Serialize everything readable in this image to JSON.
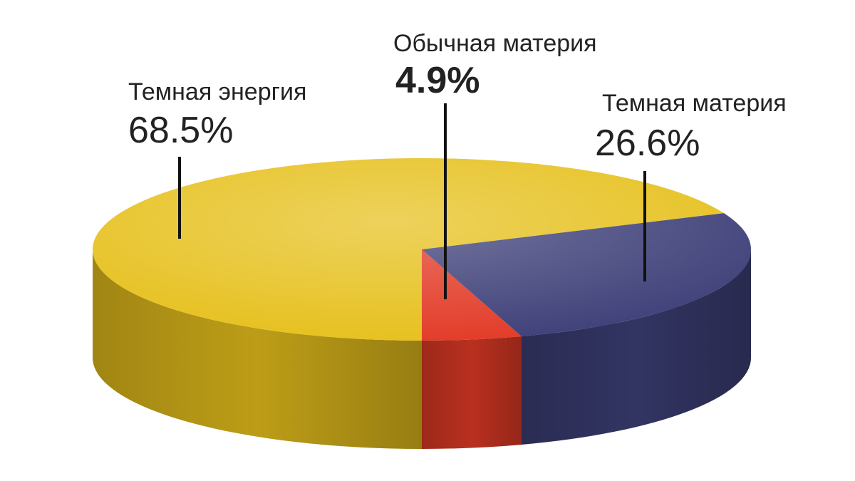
{
  "chart_data": {
    "type": "pie3d",
    "categories": [
      "Темная энергия",
      "Обычная материя",
      "Темная материя"
    ],
    "values": [
      68.5,
      4.9,
      26.6
    ],
    "value_labels": [
      "68.5%",
      "4.9%",
      "26.6%"
    ],
    "colors": [
      "#e6c01c",
      "#e23a26",
      "#3d3f78"
    ]
  }
}
